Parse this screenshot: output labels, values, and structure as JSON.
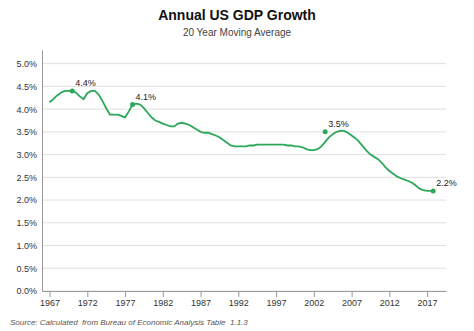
{
  "chart_data": {
    "type": "line",
    "title": "Annual US GDP Growth",
    "subtitle": "20 Year Moving Average",
    "source": "Source: Calculated  from Bureau of Economic Analysis Table  1.1.3",
    "color": "#2ca85a",
    "x": [
      1967,
      1967.5,
      1968,
      1968.5,
      1969,
      1969.5,
      1970,
      1970.5,
      1971,
      1971.5,
      1972,
      1972.5,
      1973,
      1973.5,
      1974,
      1974.5,
      1975,
      1975.5,
      1976,
      1976.5,
      1977,
      1977.5,
      1978,
      1978.5,
      1979,
      1979.5,
      1980,
      1980.5,
      1981,
      1981.5,
      1982,
      1982.5,
      1983,
      1983.5,
      1984,
      1984.5,
      1985,
      1985.5,
      1986,
      1986.5,
      1987,
      1987.5,
      1988,
      1988.5,
      1989,
      1989.5,
      1990,
      1990.5,
      1991,
      1991.5,
      1992,
      1992.5,
      1993,
      1993.5,
      1994,
      1994.5,
      1995,
      1995.5,
      1996,
      1996.5,
      1997,
      1997.5,
      1998,
      1998.5,
      1999,
      1999.5,
      2000,
      2000.5,
      2001,
      2001.5,
      2002,
      2002.5,
      2003,
      2003.5,
      2004,
      2004.5,
      2005,
      2005.5,
      2006,
      2006.5,
      2007,
      2007.5,
      2008,
      2008.5,
      2009,
      2009.5,
      2010,
      2010.5,
      2011,
      2011.5,
      2012,
      2012.5,
      2013,
      2013.5,
      2014,
      2014.5,
      2015,
      2015.5,
      2016,
      2016.5,
      2017,
      2017.5,
      2018
    ],
    "values": [
      0.0415,
      0.0422,
      0.043,
      0.0436,
      0.044,
      0.044,
      0.044,
      0.0436,
      0.0428,
      0.0422,
      0.0435,
      0.044,
      0.044,
      0.0432,
      0.0418,
      0.0402,
      0.0388,
      0.0388,
      0.0388,
      0.0385,
      0.0382,
      0.0395,
      0.041,
      0.0412,
      0.041,
      0.0402,
      0.0392,
      0.0382,
      0.0375,
      0.0372,
      0.0368,
      0.0365,
      0.0362,
      0.0362,
      0.0368,
      0.037,
      0.0368,
      0.0365,
      0.036,
      0.0355,
      0.035,
      0.0348,
      0.0348,
      0.0345,
      0.0342,
      0.0338,
      0.0332,
      0.0326,
      0.032,
      0.0318,
      0.0318,
      0.0318,
      0.0318,
      0.032,
      0.032,
      0.0322,
      0.0322,
      0.0322,
      0.0322,
      0.0322,
      0.0322,
      0.0322,
      0.0322,
      0.032,
      0.032,
      0.0318,
      0.0318,
      0.0316,
      0.0312,
      0.031,
      0.031,
      0.0312,
      0.0318,
      0.0328,
      0.0338,
      0.0345,
      0.035,
      0.0352,
      0.0352,
      0.0348,
      0.0342,
      0.0336,
      0.0328,
      0.0318,
      0.0308,
      0.03,
      0.0295,
      0.029,
      0.0282,
      0.0272,
      0.0264,
      0.0258,
      0.0252,
      0.0248,
      0.0245,
      0.0242,
      0.0238,
      0.0232,
      0.0225,
      0.0222,
      0.022,
      0.022,
      0.022
    ],
    "xlim": [
      1966,
      2019.5
    ],
    "ylim": [
      0.0,
      0.053
    ],
    "xticks": [
      1967,
      1972,
      1977,
      1982,
      1987,
      1992,
      1997,
      2002,
      2007,
      2012,
      2017
    ],
    "yticks": [
      {
        "value": 0.0,
        "label": "0.0%"
      },
      {
        "value": 0.005,
        "label": "0.5%"
      },
      {
        "value": 0.01,
        "label": "1.0%"
      },
      {
        "value": 0.015,
        "label": "1.5%"
      },
      {
        "value": 0.02,
        "label": "2.0%"
      },
      {
        "value": 0.025,
        "label": "2.5%"
      },
      {
        "value": 0.03,
        "label": "3.0%"
      },
      {
        "value": 0.035,
        "label": "3.5%"
      },
      {
        "value": 0.04,
        "label": "4.0%"
      },
      {
        "value": 0.045,
        "label": "4.5%"
      },
      {
        "value": 0.05,
        "label": "5.0%"
      }
    ],
    "grid": true,
    "annotations": [
      {
        "x": 1970,
        "y": 0.044,
        "label": "4.4%"
      },
      {
        "x": 1978,
        "y": 0.041,
        "label": "4.1%"
      },
      {
        "x": 2003.5,
        "y": 0.035,
        "label": "3.5%"
      },
      {
        "x": 2017.8,
        "y": 0.022,
        "label": "2.2%"
      }
    ]
  }
}
